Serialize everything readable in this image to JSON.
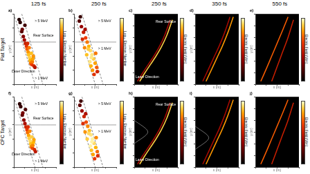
{
  "figure": {
    "columns": [
      "125 fs",
      "250 fs",
      "250 fs",
      "350 fs",
      "550 fs"
    ],
    "rows": [
      "Flat Target",
      "CPC Target"
    ]
  },
  "chart_data": [
    {
      "type": "scatter",
      "title": "a)",
      "xlabel": "x (m)",
      "ylabel": "y (m)",
      "xlim": [
        -4,
        4
      ],
      "ylim": [
        -6,
        4
      ],
      "xticks": [
        -4,
        -2,
        0,
        2,
        4
      ],
      "yticks": [
        -6,
        -4,
        -2,
        0,
        2,
        4
      ],
      "tick_labels": false,
      "colorbar": {
        "label": "Log₁₀ Electron Number",
        "range": [
          0,
          4
        ]
      },
      "points": {
        "x": [
          -2.5,
          -2.2,
          -2,
          -1.8,
          -1.6,
          -1.5,
          -1.3,
          -1.2,
          -1,
          -0.9,
          -0.8,
          -0.6,
          -0.5,
          -0.4,
          -0.2,
          0,
          -1.4,
          -1.1,
          -0.7,
          -0.3,
          -1.9,
          -2.8,
          -3,
          -2.4
        ],
        "y": [
          1.5,
          0.8,
          0.3,
          -0.2,
          -0.6,
          -1,
          -1.4,
          -1.8,
          -2.2,
          -2.6,
          -3,
          -3.2,
          -2.8,
          -2.4,
          -3.4,
          -3.6,
          -0.2,
          -0.8,
          -1.6,
          -2,
          2.4,
          2.8,
          3.2,
          1.8
        ],
        "v": [
          0.8,
          1.2,
          1.6,
          2,
          2.4,
          2.8,
          3.2,
          3.5,
          3.6,
          3.4,
          3,
          2.6,
          3,
          3.3,
          2.2,
          1.8,
          2.2,
          3,
          3.5,
          3.2,
          0.6,
          0.4,
          0.3,
          1
        ]
      },
      "series": [
        {
          "line_style": "dashed",
          "color": "#666666",
          "x": [
            -4,
            0
          ],
          "y": [
            4,
            -6
          ]
        },
        {
          "line_style": "dashed",
          "color": "#666666",
          "x": [
            -2.5,
            1.5
          ],
          "y": [
            4,
            -6
          ]
        },
        {
          "line_style": "solid",
          "color": "#888888",
          "x": [
            -4,
            4
          ],
          "y": [
            0,
            0
          ]
        }
      ],
      "annotations": [
        {
          "text": "> 5 MeV",
          "x": 1.2,
          "y": 3
        },
        {
          "text": "Rear Surface",
          "x": 1.6,
          "y": 0.9
        },
        {
          "text": "Laser Direction",
          "x": -2.2,
          "y": -4.2
        },
        {
          "text": "> 1 MeV",
          "x": 1.2,
          "y": -5.2
        }
      ]
    },
    {
      "type": "scatter",
      "title": "b)",
      "xlabel": "x (m)",
      "ylabel": "y (m)",
      "xlim": [
        -4,
        4
      ],
      "ylim": [
        -6,
        4
      ],
      "xticks": [
        -4,
        -2,
        0,
        2,
        4
      ],
      "yticks": [
        -6,
        -4,
        -2,
        0,
        2,
        4
      ],
      "tick_labels": false,
      "colorbar": {
        "label": "Log₁₀ Electron Number",
        "range": [
          0,
          4
        ]
      },
      "points": {
        "x": [
          -3,
          -2.6,
          -2.2,
          -1.8,
          -1.5,
          -1.2,
          -0.9,
          -0.6,
          -0.3,
          0,
          0.3,
          -1,
          -0.5,
          -1.6,
          -2,
          -0.8,
          -0.2,
          0.4,
          -2.4,
          -1.3,
          -0.7,
          0.1,
          -1.9,
          -2.8
        ],
        "y": [
          3,
          2.2,
          1.4,
          0.6,
          0,
          -0.6,
          -1.2,
          -1.8,
          -2.4,
          -3,
          -3.6,
          -2.8,
          -4,
          -1.8,
          -0.8,
          -3.4,
          -4.6,
          -4.2,
          0.4,
          -1,
          -2.2,
          -1.6,
          1.8,
          3.6
        ],
        "v": [
          0.8,
          1.4,
          2,
          2.6,
          3,
          3.4,
          3.7,
          3.8,
          3.6,
          3.3,
          2.8,
          3.8,
          3.2,
          3.5,
          3.1,
          3.4,
          2.4,
          2.2,
          2.2,
          3.6,
          3.8,
          3,
          1.6,
          0.5
        ]
      },
      "series": [
        {
          "line_style": "dashed",
          "color": "#666666",
          "x": [
            -4,
            0
          ],
          "y": [
            4,
            -6
          ]
        },
        {
          "line_style": "dashed",
          "color": "#666666",
          "x": [
            -2.5,
            1.5
          ],
          "y": [
            4,
            -6
          ]
        },
        {
          "line_style": "solid",
          "color": "#888888",
          "x": [
            -4,
            4
          ],
          "y": [
            0,
            0
          ]
        }
      ],
      "annotations": [
        {
          "text": "> 5 MeV",
          "x": 1.8,
          "y": 3
        },
        {
          "text": "> 1 MeV",
          "x": 1.8,
          "y": -1
        }
      ]
    },
    {
      "type": "line",
      "title": "c)",
      "xlabel": "x (m)",
      "ylabel": "y (m)",
      "xlim": [
        -4,
        4
      ],
      "ylim": [
        -6,
        6
      ],
      "xticks": [
        -4,
        -2,
        0,
        2,
        4
      ],
      "yticks": [
        -6,
        -4,
        -2,
        0,
        2,
        4,
        6
      ],
      "tick_labels": false,
      "colorbar": {
        "label": "Electric Field (V/m)",
        "range": [
          0,
          1
        ]
      },
      "series": [
        {
          "value": 0.9,
          "x": [
            -3,
            -2,
            -1,
            0,
            1,
            2,
            3
          ],
          "y": [
            -5.5,
            -4,
            -2.6,
            -1.2,
            0.4,
            2.4,
            5
          ]
        },
        {
          "value": 0.4,
          "x": [
            -3.4,
            -2.4,
            -1.4,
            -0.4,
            0.6,
            1.6,
            2.6
          ],
          "y": [
            -5.5,
            -4,
            -2.6,
            -1.2,
            0.4,
            2.4,
            5
          ]
        }
      ],
      "annotations": [
        {
          "text": "Rear Surface",
          "x": 1.8,
          "y": 4.6
        },
        {
          "text": "Laser Direction",
          "x": -1.6,
          "y": -4.8
        }
      ]
    },
    {
      "type": "line",
      "title": "d)",
      "xlabel": "x (m)",
      "ylabel": "y (m)",
      "xlim": [
        -4,
        4
      ],
      "ylim": [
        -6,
        6
      ],
      "xticks": [
        -4,
        -2,
        0,
        2,
        4
      ],
      "yticks": [
        -6,
        -4,
        -2,
        0,
        2,
        4,
        6
      ],
      "tick_labels": false,
      "colorbar": {
        "label": "Electric Field (V/m)",
        "range": [
          0,
          1
        ]
      },
      "series": [
        {
          "value": 0.8,
          "x": [
            -2,
            -1,
            0,
            1,
            2,
            3
          ],
          "y": [
            -5.5,
            -3.5,
            -1.5,
            0.5,
            2.8,
            5.5
          ]
        },
        {
          "value": 0.4,
          "x": [
            -2.6,
            -1.6,
            -0.6,
            0.4,
            1.4,
            2.4
          ],
          "y": [
            -5.5,
            -3.5,
            -1.5,
            0.5,
            2.8,
            5.5
          ]
        }
      ],
      "annotations": []
    },
    {
      "type": "line",
      "title": "e)",
      "xlabel": "x (m)",
      "ylabel": "y (m)",
      "xlim": [
        -4,
        4
      ],
      "ylim": [
        -6,
        6
      ],
      "xticks": [
        -4,
        -2,
        0,
        2,
        4
      ],
      "yticks": [
        -6,
        -4,
        -2,
        0,
        2,
        4,
        6
      ],
      "tick_labels": false,
      "colorbar": {
        "label": "Electric Field (V/m)",
        "range": [
          0,
          1
        ]
      },
      "series": [
        {
          "value": 0.7,
          "x": [
            -3,
            -2,
            -1,
            0,
            1,
            2
          ],
          "y": [
            -5.5,
            -3.4,
            -1.2,
            1,
            3.2,
            5.5
          ]
        },
        {
          "value": 0.5,
          "x": [
            -1,
            0,
            1,
            2,
            3
          ],
          "y": [
            -5.5,
            -3,
            -0.5,
            2,
            5
          ]
        }
      ],
      "annotations": []
    },
    {
      "type": "scatter",
      "title": "f)",
      "xlabel": "x (m)",
      "ylabel": "y (m)",
      "xlim": [
        -4,
        4
      ],
      "ylim": [
        -6,
        4
      ],
      "xticks": [
        -4,
        -2,
        0,
        2,
        4
      ],
      "yticks": [
        -6,
        -4,
        -2,
        0,
        2,
        4
      ],
      "tick_labels": false,
      "colorbar": {
        "label": "Log₁₀ Electron Number",
        "range": [
          0,
          4
        ]
      },
      "points": {
        "x": [
          -2.4,
          -2.1,
          -1.9,
          -1.7,
          -1.5,
          -1.4,
          -1.2,
          -1.1,
          -0.9,
          -0.8,
          -0.7,
          -0.5,
          -0.4,
          -0.3,
          -0.1,
          0.1,
          -1.3,
          -1,
          -0.6,
          -0.2,
          -1.8,
          -2.7,
          -2.9,
          -2.3
        ],
        "y": [
          1.4,
          0.7,
          0.2,
          -0.3,
          -0.7,
          -1.1,
          -1.5,
          -1.9,
          -2.3,
          -2.7,
          -3.1,
          -3.3,
          -2.9,
          -2.5,
          -3.5,
          -3.8,
          -0.3,
          -0.9,
          -1.7,
          -2.1,
          2.2,
          2.6,
          3,
          1.7
        ],
        "v": [
          0.9,
          1.3,
          1.7,
          2.1,
          2.5,
          2.9,
          3.3,
          3.6,
          3.7,
          3.5,
          3.1,
          2.7,
          3.1,
          3.4,
          2.3,
          1.9,
          2.3,
          3.1,
          3.6,
          3.3,
          0.7,
          0.5,
          0.4,
          1.1
        ]
      },
      "series": [
        {
          "line_style": "dashed",
          "color": "#666666",
          "x": [
            -4,
            0
          ],
          "y": [
            4,
            -6
          ]
        },
        {
          "line_style": "dashed",
          "color": "#666666",
          "x": [
            -2.5,
            1.5
          ],
          "y": [
            4,
            -6
          ]
        },
        {
          "line_style": "solid",
          "color": "#888888",
          "x": [
            -4,
            4
          ],
          "y": [
            0,
            0
          ]
        }
      ],
      "annotations": [
        {
          "text": "> 5 MeV",
          "x": 1.2,
          "y": 3
        },
        {
          "text": "Rear Surface",
          "x": 1.6,
          "y": 0.9
        },
        {
          "text": "Laser Direction",
          "x": -2.2,
          "y": -4.2
        },
        {
          "text": "> 1 MeV",
          "x": 1.2,
          "y": -5.2
        }
      ]
    },
    {
      "type": "scatter",
      "title": "g)",
      "xlabel": "x (m)",
      "ylabel": "y (m)",
      "xlim": [
        -4,
        4
      ],
      "ylim": [
        -6,
        4
      ],
      "xticks": [
        -4,
        -2,
        0,
        2,
        4
      ],
      "yticks": [
        -6,
        -4,
        -2,
        0,
        2,
        4
      ],
      "tick_labels": false,
      "colorbar": {
        "label": "Log₁₀ Electron Number",
        "range": [
          0,
          4
        ]
      },
      "points": {
        "x": [
          -2.9,
          -2.5,
          -2.1,
          -1.7,
          -1.4,
          -1.1,
          -0.8,
          -0.5,
          -0.2,
          0.1,
          0.4,
          -0.9,
          -0.4,
          -1.5,
          -1.9,
          -0.7,
          -0.1,
          0.5,
          -2.3,
          -1.2,
          -0.6,
          0.2,
          -1.8,
          -2.7
        ],
        "y": [
          2.8,
          2,
          1.2,
          0.4,
          -0.2,
          -0.8,
          -1.4,
          -2,
          -2.6,
          -3.2,
          -3.8,
          -3,
          -4.2,
          -2,
          -1,
          -3.6,
          -4.8,
          -4.4,
          0.2,
          -1.2,
          -2.4,
          -1.8,
          1.6,
          3.4
        ],
        "v": [
          0.9,
          1.5,
          2.1,
          2.7,
          3.1,
          3.5,
          3.8,
          3.9,
          3.7,
          3.4,
          2.9,
          3.9,
          3.3,
          3.6,
          3.2,
          3.5,
          2.5,
          2.3,
          2.3,
          3.7,
          3.9,
          3.1,
          1.7,
          0.6
        ]
      },
      "series": [
        {
          "line_style": "dashed",
          "color": "#666666",
          "x": [
            -4,
            0
          ],
          "y": [
            4,
            -6
          ]
        },
        {
          "line_style": "dashed",
          "color": "#666666",
          "x": [
            -2.5,
            1.5
          ],
          "y": [
            4,
            -6
          ]
        },
        {
          "line_style": "solid",
          "color": "#888888",
          "x": [
            -4,
            4
          ],
          "y": [
            0,
            0
          ]
        }
      ],
      "annotations": [
        {
          "text": "> 5 MeV",
          "x": 1.8,
          "y": 3
        },
        {
          "text": "> 1 MeV",
          "x": 1.8,
          "y": -1
        }
      ]
    },
    {
      "type": "line",
      "title": "h)",
      "xlabel": "x (m)",
      "ylabel": "y (m)",
      "xlim": [
        -4,
        4
      ],
      "ylim": [
        -6,
        6
      ],
      "xticks": [
        -4,
        -2,
        0,
        2,
        4
      ],
      "yticks": [
        -6,
        -4,
        -2,
        0,
        2,
        4,
        6
      ],
      "tick_labels": false,
      "colorbar": {
        "label": "Electric Field (V/m)",
        "range": [
          0,
          1
        ]
      },
      "series": [
        {
          "color": "#888888",
          "x": [
            -4,
            -1.5,
            -4
          ],
          "y": [
            -2,
            0,
            2
          ]
        },
        {
          "value": 0.9,
          "x": [
            -3,
            -2,
            -1,
            0,
            1,
            2,
            3
          ],
          "y": [
            -5.5,
            -4,
            -2.6,
            -1.2,
            0.4,
            2.4,
            5
          ]
        },
        {
          "value": 0.4,
          "x": [
            -3.4,
            -2.4,
            -1.4,
            -0.4,
            0.6,
            1.6,
            2.6
          ],
          "y": [
            -5.5,
            -4,
            -2.6,
            -1.2,
            0.4,
            2.4,
            5
          ]
        }
      ],
      "annotations": [
        {
          "text": "Rear Surface",
          "x": 1.8,
          "y": 4.6
        },
        {
          "text": "Laser Direction",
          "x": -1.6,
          "y": -4.8
        }
      ]
    },
    {
      "type": "line",
      "title": "i)",
      "xlabel": "x (m)",
      "ylabel": "y (m)",
      "xlim": [
        -4,
        4
      ],
      "ylim": [
        -6,
        6
      ],
      "xticks": [
        -4,
        -2,
        0,
        2,
        4
      ],
      "yticks": [
        -6,
        -4,
        -2,
        0,
        2,
        4,
        6
      ],
      "tick_labels": false,
      "colorbar": {
        "label": "Electric Field (V/m)",
        "range": [
          0,
          1
        ]
      },
      "series": [
        {
          "color": "#888888",
          "x": [
            -4,
            -1.5,
            -4
          ],
          "y": [
            -3,
            -1,
            1
          ]
        },
        {
          "value": 0.8,
          "x": [
            -2,
            -1,
            0,
            1,
            2,
            3
          ],
          "y": [
            -5.5,
            -3.5,
            -1.5,
            0.5,
            2.8,
            5.5
          ]
        },
        {
          "value": 0.4,
          "x": [
            -2.6,
            -1.6,
            -0.6,
            0.4,
            1.4,
            2.4
          ],
          "y": [
            -5.5,
            -3.5,
            -1.5,
            0.5,
            2.8,
            5.5
          ]
        }
      ],
      "annotations": []
    },
    {
      "type": "line",
      "title": "j)",
      "xlabel": "x (m)",
      "ylabel": "y (m)",
      "xlim": [
        -4,
        4
      ],
      "ylim": [
        -6,
        6
      ],
      "xticks": [
        -4,
        -2,
        0,
        2,
        4
      ],
      "yticks": [
        -6,
        -4,
        -2,
        0,
        2,
        4,
        6
      ],
      "tick_labels": false,
      "colorbar": {
        "label": "Electric Field (V/m)",
        "range": [
          0,
          1
        ]
      },
      "series": [
        {
          "value": 0.7,
          "x": [
            -3,
            -2,
            -1,
            0,
            1,
            2
          ],
          "y": [
            -5.5,
            -3.4,
            -1.2,
            1,
            3.2,
            5.5
          ]
        },
        {
          "value": 0.5,
          "x": [
            -1,
            0,
            1,
            2,
            3
          ],
          "y": [
            -5.5,
            -3,
            -0.5,
            2,
            5
          ]
        }
      ],
      "annotations": []
    }
  ]
}
